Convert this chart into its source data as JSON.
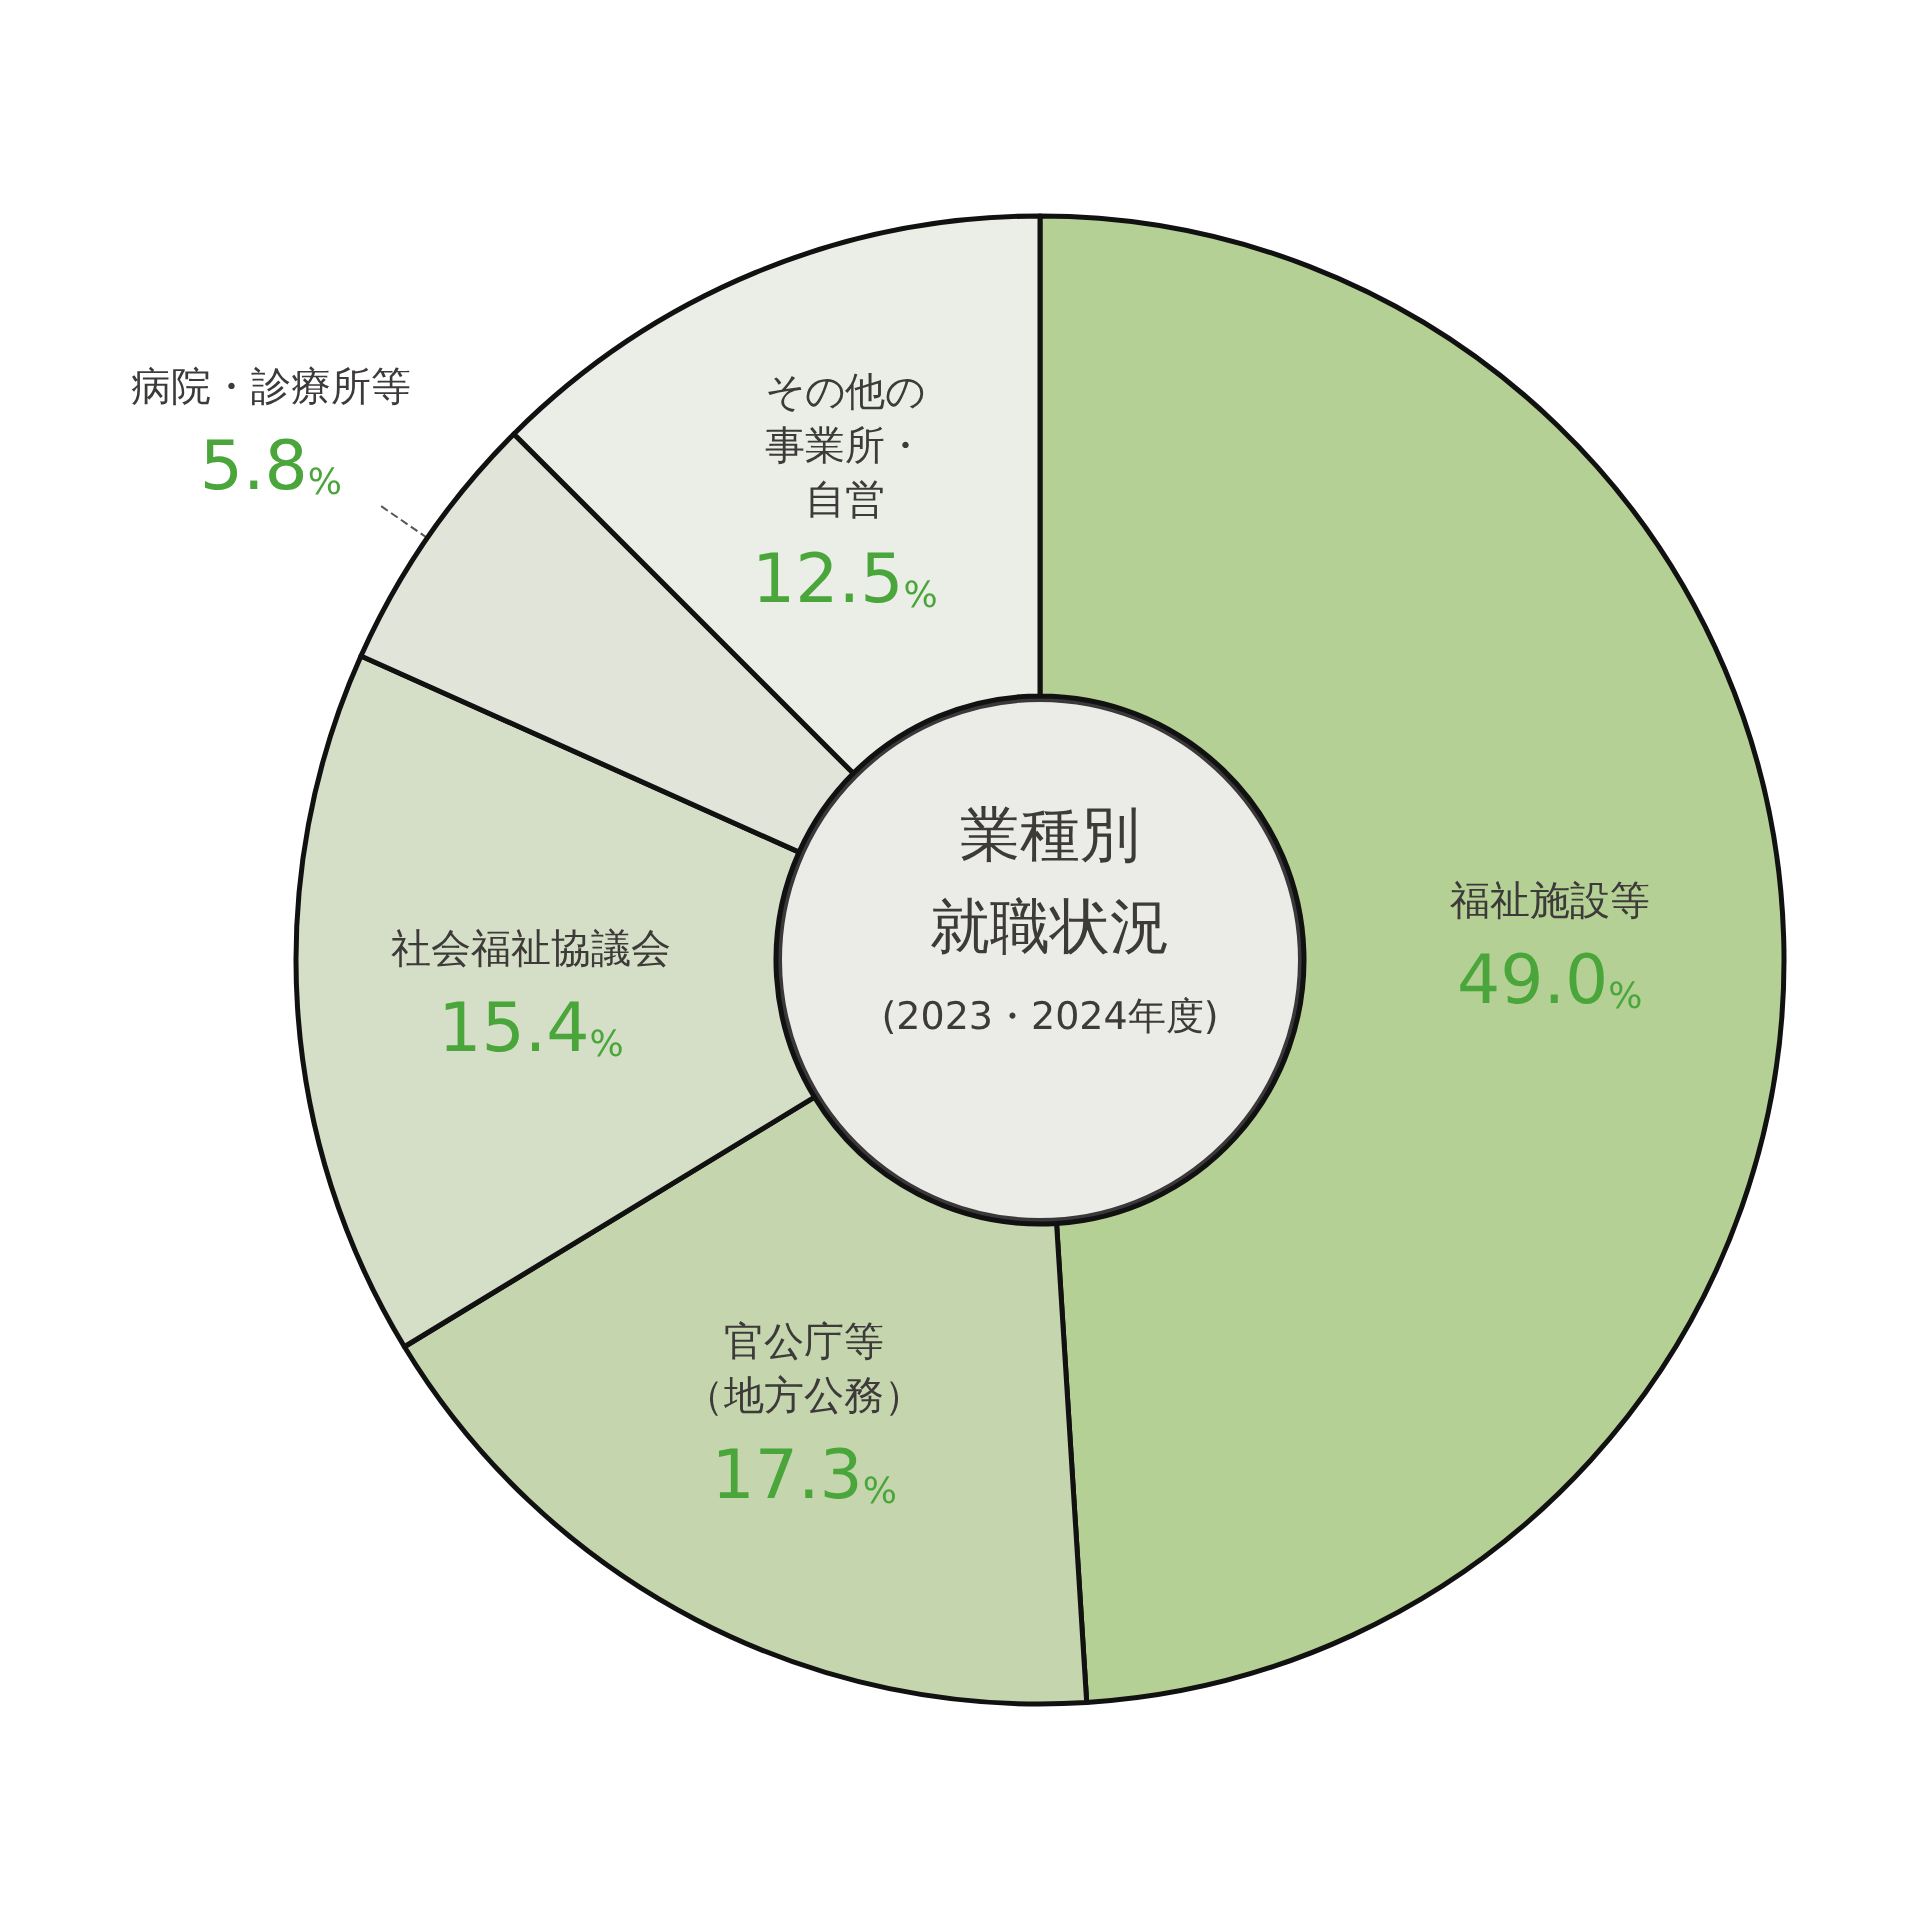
{
  "chart_data": {
    "type": "donut",
    "title": "業種別就職状況",
    "subtitle": "(2023・2024年度)",
    "categories": [
      "福祉施設等",
      "官公庁等（地方公務）",
      "社会福祉協議会",
      "病院・診療所等",
      "その他の事業所・自営"
    ],
    "values": [
      49.0,
      17.3,
      15.4,
      5.8,
      12.5
    ],
    "value_labels": [
      "49.0%",
      "17.3%",
      "15.4%",
      "5.8%",
      "12.5%"
    ],
    "colors": [
      "#b5d095",
      "#c5d5ae",
      "#d5dec6",
      "#e1e4d9",
      "#ebede7"
    ]
  }
}
